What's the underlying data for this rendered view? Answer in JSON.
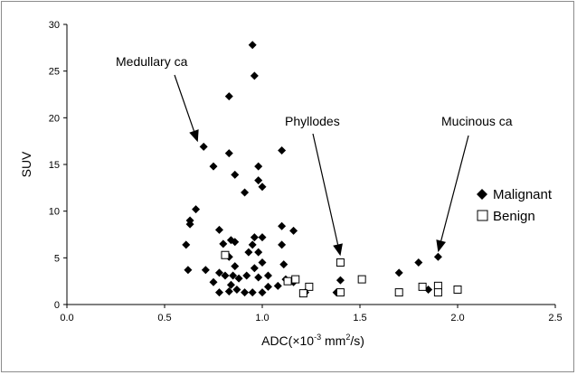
{
  "chart_data": {
    "type": "scatter",
    "xlabel": "ADC(×10",
    "xlabel_exp": "-3",
    "xlabel_unit": " mm",
    "xlabel_unit_exp": "2",
    "xlabel_tail": "/s)",
    "ylabel": "SUV",
    "xlim": [
      0,
      2.5
    ],
    "ylim": [
      0,
      30
    ],
    "x_ticks": [
      "0.0",
      "0.5",
      "1.0",
      "1.5",
      "2.0",
      "2.5"
    ],
    "y_ticks": [
      "0",
      "5",
      "10",
      "15",
      "20",
      "25",
      "30"
    ],
    "grid": false,
    "legend_position": "right",
    "series": [
      {
        "name": "Malignant",
        "marker": "diamond",
        "color": "#000000",
        "points": [
          [
            0.95,
            27.8
          ],
          [
            0.96,
            24.5
          ],
          [
            0.83,
            22.3
          ],
          [
            0.7,
            16.9
          ],
          [
            0.83,
            16.2
          ],
          [
            1.1,
            16.5
          ],
          [
            0.75,
            14.8
          ],
          [
            0.98,
            14.8
          ],
          [
            0.86,
            13.9
          ],
          [
            0.98,
            13.3
          ],
          [
            1.0,
            12.6
          ],
          [
            0.91,
            12.0
          ],
          [
            0.66,
            10.2
          ],
          [
            0.63,
            9.0
          ],
          [
            0.63,
            8.6
          ],
          [
            0.78,
            8.0
          ],
          [
            1.1,
            8.4
          ],
          [
            0.96,
            7.2
          ],
          [
            1.16,
            7.9
          ],
          [
            1.0,
            7.2
          ],
          [
            0.84,
            6.9
          ],
          [
            0.61,
            6.4
          ],
          [
            0.8,
            6.5
          ],
          [
            0.86,
            6.7
          ],
          [
            0.95,
            6.4
          ],
          [
            1.1,
            6.4
          ],
          [
            0.93,
            5.6
          ],
          [
            0.98,
            5.6
          ],
          [
            0.83,
            5.1
          ],
          [
            1.0,
            4.5
          ],
          [
            0.78,
            3.4
          ],
          [
            0.86,
            4.1
          ],
          [
            0.96,
            3.9
          ],
          [
            1.11,
            4.3
          ],
          [
            0.85,
            3.1
          ],
          [
            0.62,
            3.7
          ],
          [
            0.71,
            3.7
          ],
          [
            0.81,
            3.1
          ],
          [
            0.88,
            2.8
          ],
          [
            0.92,
            3.1
          ],
          [
            0.98,
            2.9
          ],
          [
            1.03,
            3.1
          ],
          [
            1.12,
            2.7
          ],
          [
            0.75,
            2.4
          ],
          [
            0.84,
            2.1
          ],
          [
            0.87,
            1.6
          ],
          [
            0.95,
            1.3
          ],
          [
            0.83,
            1.4
          ],
          [
            1.03,
            1.9
          ],
          [
            1.08,
            2.0
          ],
          [
            0.78,
            1.3
          ],
          [
            0.91,
            1.3
          ],
          [
            1.0,
            1.3
          ],
          [
            1.16,
            2.4
          ],
          [
            1.22,
            1.3
          ],
          [
            1.38,
            1.3
          ],
          [
            1.4,
            2.6
          ],
          [
            1.7,
            3.4
          ],
          [
            1.8,
            4.5
          ],
          [
            1.9,
            5.1
          ],
          [
            1.85,
            1.6
          ],
          [
            1.9,
            1.3
          ]
        ]
      },
      {
        "name": "Benign",
        "marker": "square-open",
        "color": "#000000",
        "points": [
          [
            0.81,
            5.3
          ],
          [
            1.13,
            2.5
          ],
          [
            1.17,
            2.7
          ],
          [
            1.24,
            1.9
          ],
          [
            1.21,
            1.2
          ],
          [
            1.4,
            4.5
          ],
          [
            1.4,
            1.3
          ],
          [
            1.51,
            2.7
          ],
          [
            1.7,
            1.3
          ],
          [
            1.82,
            1.9
          ],
          [
            1.9,
            2.0
          ],
          [
            1.9,
            1.3
          ],
          [
            2.0,
            1.6
          ]
        ]
      }
    ],
    "annotations": [
      {
        "label": "Medullary ca",
        "target": [
          0.67,
          17.4
        ]
      },
      {
        "label": "Phyllodes",
        "target": [
          1.4,
          5.2
        ]
      },
      {
        "label": "Mucinous ca",
        "target": [
          1.9,
          5.6
        ]
      }
    ]
  }
}
